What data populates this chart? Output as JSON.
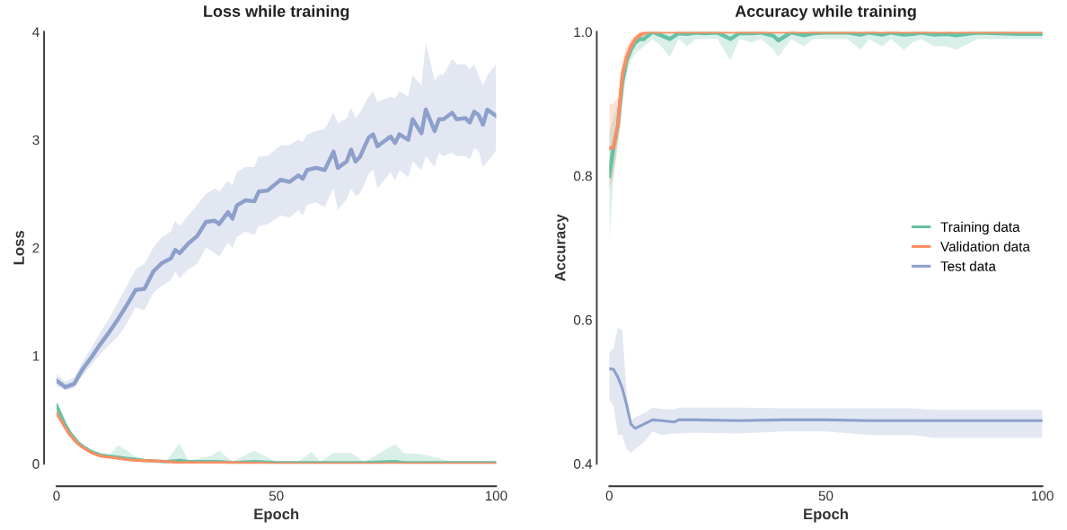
{
  "chart_data": [
    {
      "type": "line",
      "title": "Loss while training",
      "xlabel": "Epoch",
      "ylabel": "Loss",
      "xlim": [
        0,
        100
      ],
      "xticks": [
        0,
        50,
        100
      ],
      "ylim": [
        0,
        4
      ],
      "yticks": [
        0,
        1,
        2,
        3,
        4
      ],
      "grid": false,
      "legend": false,
      "line_style": "solid",
      "marker": "none",
      "series": [
        {
          "color": "#8da0cb",
          "x": [
            0,
            2,
            4,
            6,
            8,
            10,
            12,
            14,
            16,
            18,
            20,
            22,
            24,
            26,
            27,
            28,
            30,
            32,
            34,
            36,
            37,
            39,
            40,
            41,
            43,
            45,
            46,
            48,
            51,
            53,
            55,
            56,
            57,
            59,
            61,
            63,
            64,
            66,
            67,
            68,
            69,
            71,
            72,
            73,
            76,
            77,
            78,
            80,
            81,
            83,
            84,
            86,
            87,
            88,
            90,
            91,
            93,
            94,
            95,
            96,
            97,
            98,
            100
          ],
          "values": [
            0.77,
            0.71,
            0.74,
            0.88,
            0.99,
            1.11,
            1.22,
            1.34,
            1.47,
            1.61,
            1.62,
            1.78,
            1.86,
            1.9,
            1.98,
            1.95,
            2.04,
            2.11,
            2.24,
            2.25,
            2.22,
            2.33,
            2.27,
            2.39,
            2.44,
            2.43,
            2.52,
            2.53,
            2.63,
            2.61,
            2.67,
            2.64,
            2.72,
            2.74,
            2.72,
            2.89,
            2.74,
            2.8,
            2.91,
            2.8,
            2.84,
            3.02,
            3.05,
            2.94,
            3.03,
            2.97,
            3.05,
            3.0,
            3.19,
            3.06,
            3.28,
            3.08,
            3.19,
            3.19,
            3.25,
            3.19,
            3.2,
            3.16,
            3.26,
            3.23,
            3.14,
            3.28,
            3.22
          ],
          "lower": [
            0.72,
            0.68,
            0.7,
            0.82,
            0.92,
            1.02,
            1.1,
            1.18,
            1.3,
            1.45,
            1.42,
            1.58,
            1.65,
            1.7,
            1.78,
            1.72,
            1.8,
            1.85,
            2.0,
            1.95,
            1.92,
            2.05,
            2.0,
            2.1,
            2.15,
            2.12,
            2.2,
            2.22,
            2.3,
            2.28,
            2.35,
            2.3,
            2.4,
            2.42,
            2.38,
            2.55,
            2.35,
            2.45,
            2.55,
            2.48,
            2.5,
            2.68,
            2.72,
            2.55,
            2.7,
            2.62,
            2.72,
            2.65,
            2.8,
            2.72,
            2.85,
            2.75,
            2.88,
            2.85,
            2.88,
            2.85,
            2.85,
            2.82,
            2.92,
            2.9,
            2.75,
            2.8,
            2.9
          ],
          "upper": [
            0.83,
            0.76,
            0.8,
            0.95,
            1.08,
            1.22,
            1.35,
            1.5,
            1.65,
            1.8,
            1.85,
            2.0,
            2.1,
            2.15,
            2.25,
            2.2,
            2.3,
            2.4,
            2.5,
            2.55,
            2.52,
            2.62,
            2.58,
            2.7,
            2.75,
            2.75,
            2.85,
            2.85,
            2.95,
            2.95,
            3.0,
            2.98,
            3.05,
            3.08,
            3.1,
            3.25,
            3.15,
            3.2,
            3.3,
            3.2,
            3.25,
            3.4,
            3.45,
            3.35,
            3.4,
            3.38,
            3.45,
            3.4,
            3.6,
            3.5,
            3.9,
            3.55,
            3.6,
            3.6,
            3.75,
            3.7,
            3.7,
            3.65,
            3.7,
            3.6,
            3.5,
            3.6,
            3.7
          ]
        },
        {
          "color": "#66c2a5",
          "x": [
            0,
            1,
            2,
            3,
            4,
            5,
            6,
            8,
            10,
            12,
            14,
            16,
            18,
            20,
            25,
            28,
            30,
            35,
            37,
            40,
            45,
            50,
            55,
            58,
            60,
            63,
            67,
            70,
            77,
            79,
            83,
            90,
            100
          ],
          "values": [
            0.54,
            0.45,
            0.36,
            0.29,
            0.24,
            0.19,
            0.16,
            0.11,
            0.08,
            0.07,
            0.06,
            0.05,
            0.04,
            0.03,
            0.02,
            0.03,
            0.02,
            0.02,
            0.02,
            0.01,
            0.02,
            0.01,
            0.01,
            0.01,
            0.01,
            0.01,
            0.01,
            0.01,
            0.02,
            0.01,
            0.01,
            0.01,
            0.01
          ],
          "lower": [
            0.5,
            0.42,
            0.34,
            0.27,
            0.22,
            0.18,
            0.15,
            0.1,
            0.07,
            0.06,
            0.05,
            0.04,
            0.03,
            0.02,
            0.01,
            0.01,
            0.01,
            0.01,
            0.01,
            0,
            0.01,
            0,
            0,
            0,
            0,
            0,
            0,
            0,
            0,
            0,
            0,
            0,
            0
          ],
          "upper": [
            0.58,
            0.48,
            0.38,
            0.31,
            0.26,
            0.21,
            0.18,
            0.12,
            0.09,
            0.08,
            0.17,
            0.12,
            0.06,
            0.04,
            0.03,
            0.19,
            0.03,
            0.07,
            0.12,
            0.02,
            0.12,
            0.02,
            0.02,
            0.11,
            0.02,
            0.1,
            0.1,
            0.02,
            0.18,
            0.1,
            0.09,
            0.02,
            0.02
          ]
        },
        {
          "color": "#fc8d62",
          "x": [
            0,
            1,
            2,
            3,
            4,
            5,
            6,
            8,
            10,
            12,
            14,
            16,
            18,
            20,
            25,
            28,
            30,
            35,
            40,
            50,
            60,
            70,
            80,
            90,
            100
          ],
          "values": [
            0.47,
            0.4,
            0.33,
            0.27,
            0.22,
            0.18,
            0.15,
            0.1,
            0.07,
            0.06,
            0.05,
            0.04,
            0.03,
            0.03,
            0.02,
            0.01,
            0.01,
            0.01,
            0.01,
            0,
            0,
            0,
            0,
            0,
            0
          ]
        }
      ]
    },
    {
      "type": "line",
      "title": "Accuracy while training",
      "xlabel": "Epoch",
      "ylabel": "Accuracy",
      "xlim": [
        0,
        100
      ],
      "xticks": [
        0,
        50,
        100
      ],
      "ylim": [
        0.4,
        1.0
      ],
      "yticks": [
        0.4,
        0.6,
        0.8,
        {
          "value": 1.0,
          "label": "1.0"
        }
      ],
      "grid": false,
      "legend": "right",
      "line_style": "solid",
      "marker": "none",
      "series": [
        {
          "name": "Training data",
          "color": "#66c2a5",
          "x": [
            0,
            1,
            2,
            3,
            4,
            5,
            6,
            7,
            8,
            9,
            10,
            12,
            14,
            16,
            18,
            20,
            22,
            25,
            28,
            30,
            33,
            35,
            38,
            39,
            42,
            45,
            47,
            50,
            55,
            58,
            60,
            63,
            65,
            68,
            70,
            72,
            75,
            78,
            80,
            85,
            90,
            95,
            100
          ],
          "values": [
            0.8,
            0.84,
            0.87,
            0.93,
            0.96,
            0.975,
            0.985,
            0.99,
            0.99,
            0.995,
            1.0,
            0.995,
            0.99,
            0.998,
            0.997,
            0.999,
            0.998,
            0.999,
            0.99,
            0.998,
            0.998,
            0.999,
            0.994,
            0.988,
            0.999,
            0.995,
            0.998,
            0.999,
            0.999,
            0.996,
            0.999,
            0.996,
            0.999,
            0.996,
            0.997,
            0.999,
            0.996,
            0.997,
            0.995,
            0.999,
            0.998,
            0.997,
            0.997
          ],
          "lower": [
            0.71,
            0.8,
            0.84,
            0.9,
            0.94,
            0.96,
            0.97,
            0.975,
            0.98,
            0.985,
            0.99,
            0.98,
            0.965,
            0.99,
            0.98,
            0.99,
            0.99,
            0.99,
            0.96,
            0.99,
            0.985,
            0.99,
            0.975,
            0.965,
            0.99,
            0.98,
            0.99,
            0.99,
            0.99,
            0.975,
            0.99,
            0.98,
            0.99,
            0.975,
            0.985,
            0.99,
            0.98,
            0.98,
            0.975,
            0.99,
            0.99,
            0.99,
            0.99
          ],
          "upper": [
            0.86,
            0.88,
            0.9,
            0.95,
            0.97,
            0.985,
            0.99,
            1.0,
            1.0,
            1.0,
            1.0,
            1.0,
            1.0,
            1.0,
            1.0,
            1.0,
            1.0,
            1.0,
            1.0,
            1.0,
            1.0,
            1.0,
            1.0,
            1.0,
            1.0,
            1.0,
            1.0,
            1.0,
            1.0,
            1.0,
            1.0,
            1.0,
            1.0,
            1.0,
            1.0,
            1.0,
            1.0,
            1.0,
            1.0,
            1.0,
            1.0,
            1.0,
            1.0
          ]
        },
        {
          "name": "Validation data",
          "color": "#fc8d62",
          "x": [
            0,
            1,
            2,
            3,
            4,
            5,
            6,
            7,
            8,
            9,
            10,
            20,
            30,
            40,
            50,
            60,
            70,
            80,
            90,
            100
          ],
          "values": [
            0.838,
            0.84,
            0.87,
            0.94,
            0.965,
            0.98,
            0.99,
            0.995,
            0.998,
            1.0,
            1.0,
            1.0,
            1.0,
            1.0,
            1.0,
            1.0,
            1.0,
            1.0,
            1.0,
            1.0
          ],
          "lower": [
            0.78,
            0.8,
            0.85,
            0.92,
            0.95,
            0.97,
            0.985,
            0.99,
            0.995,
            0.998,
            1.0,
            1.0,
            1.0,
            1.0,
            1.0,
            1.0,
            1.0,
            1.0,
            1.0,
            1.0
          ],
          "upper": [
            0.9,
            0.9,
            0.91,
            0.96,
            0.98,
            0.99,
            0.995,
            1.0,
            1.0,
            1.0,
            1.0,
            1.0,
            1.0,
            1.0,
            1.0,
            1.0,
            1.0,
            1.0,
            1.0,
            1.0
          ]
        },
        {
          "name": "Test data",
          "color": "#8da0cb",
          "x": [
            0,
            1,
            2,
            3,
            4,
            5,
            6,
            8,
            10,
            12,
            15,
            16,
            20,
            30,
            40,
            50,
            60,
            70,
            75,
            80,
            90,
            100
          ],
          "values": [
            0.532,
            0.531,
            0.52,
            0.505,
            0.482,
            0.455,
            0.449,
            0.455,
            0.461,
            0.46,
            0.458,
            0.461,
            0.461,
            0.46,
            0.461,
            0.461,
            0.46,
            0.46,
            0.46,
            0.46,
            0.46,
            0.46
          ],
          "lower": [
            0.49,
            0.48,
            0.44,
            0.44,
            0.42,
            0.415,
            0.42,
            0.43,
            0.445,
            0.44,
            0.442,
            0.442,
            0.443,
            0.442,
            0.445,
            0.445,
            0.44,
            0.44,
            0.436,
            0.436,
            0.436,
            0.436
          ],
          "upper": [
            0.555,
            0.56,
            0.59,
            0.585,
            0.5,
            0.46,
            0.465,
            0.47,
            0.478,
            0.476,
            0.475,
            0.478,
            0.478,
            0.478,
            0.477,
            0.477,
            0.477,
            0.477,
            0.475,
            0.475,
            0.475,
            0.475
          ]
        }
      ]
    }
  ]
}
